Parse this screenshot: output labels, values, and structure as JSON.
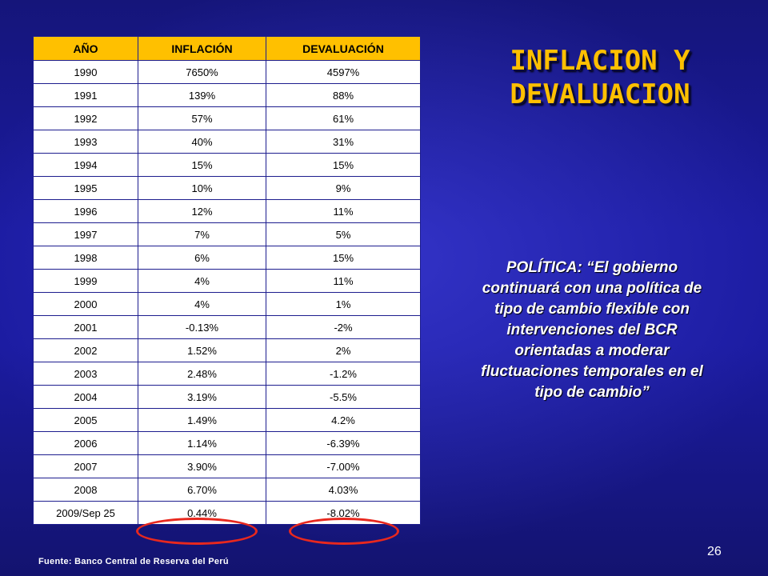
{
  "slide": {
    "title_line1": "INFLACION Y",
    "title_line2": "DEVALUACION",
    "policy_text": "POLÍTICA: “El gobierno continuará con una política de tipo de cambio flexible con intervenciones del BCR orientadas a moderar fluctuaciones temporales en el tipo de cambio”",
    "source": "Fuente: Banco Central de Reserva del Perú",
    "page_number": "26"
  },
  "table": {
    "headers": [
      "AÑO",
      "INFLACIÓN",
      "DEVALUACIÓN"
    ],
    "rows": [
      [
        "1990",
        "7650%",
        "4597%"
      ],
      [
        "1991",
        "139%",
        "88%"
      ],
      [
        "1992",
        "57%",
        "61%"
      ],
      [
        "1993",
        "40%",
        "31%"
      ],
      [
        "1994",
        "15%",
        "15%"
      ],
      [
        "1995",
        "10%",
        "9%"
      ],
      [
        "1996",
        "12%",
        "11%"
      ],
      [
        "1997",
        "7%",
        "5%"
      ],
      [
        "1998",
        "6%",
        "15%"
      ],
      [
        "1999",
        "4%",
        "11%"
      ],
      [
        "2000",
        "4%",
        "1%"
      ],
      [
        "2001",
        "-0.13%",
        "-2%"
      ],
      [
        "2002",
        "1.52%",
        "2%"
      ],
      [
        "2003",
        "2.48%",
        "-1.2%"
      ],
      [
        "2004",
        "3.19%",
        "-5.5%"
      ],
      [
        "2005",
        "1.49%",
        "4.2%"
      ],
      [
        "2006",
        "1.14%",
        "-6.39%"
      ],
      [
        "2007",
        "3.90%",
        "-7.00%"
      ],
      [
        "2008",
        "6.70%",
        "4.03%"
      ],
      [
        "2009/Sep 25",
        "0.44%",
        "-8.02%"
      ]
    ]
  },
  "colors": {
    "background": "#1b1ba0",
    "header_fill": "#ffc000",
    "title": "#ffc000",
    "highlight_circle": "#e8281e"
  }
}
